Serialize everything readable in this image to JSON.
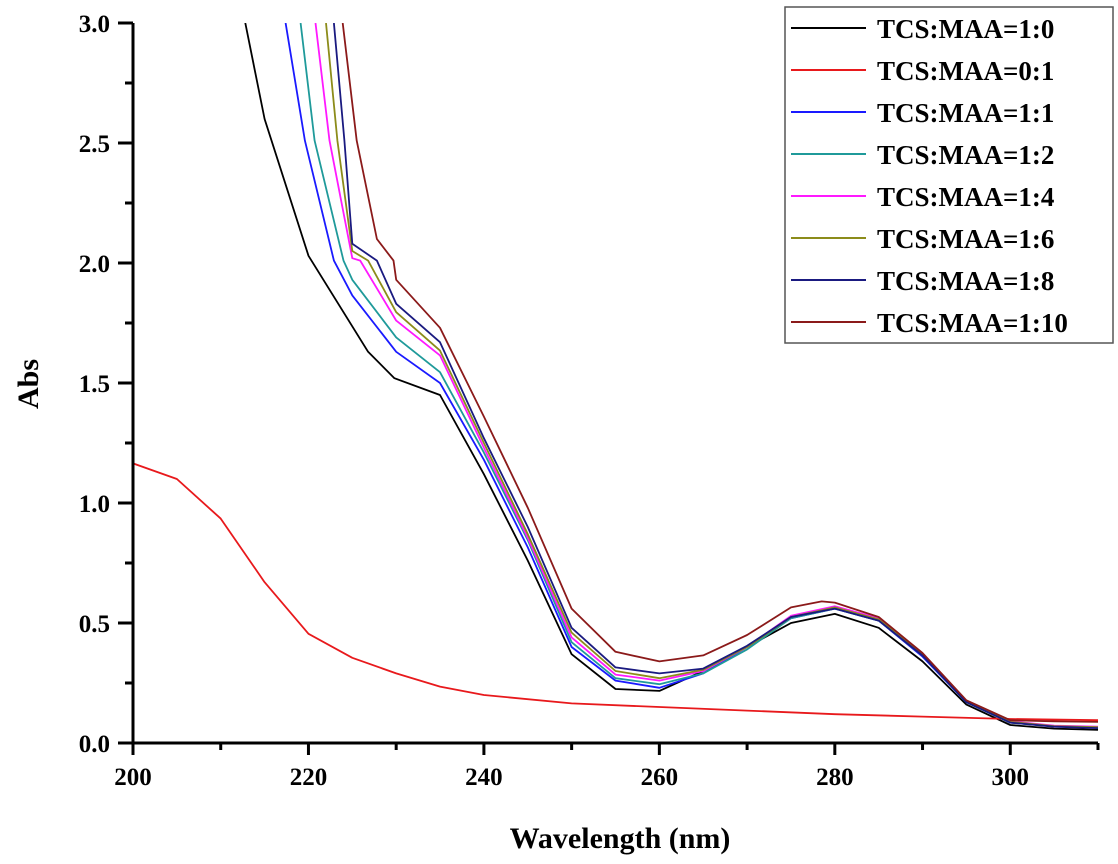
{
  "chart_data": {
    "type": "line",
    "title": "",
    "xlabel": "Wavelength (nm)",
    "ylabel": "Abs",
    "xlim": [
      200,
      310
    ],
    "ylim": [
      0.0,
      3.0
    ],
    "grid": false,
    "legend_position": "top-right",
    "x_ticks": [
      200,
      220,
      240,
      260,
      280,
      300
    ],
    "x_tick_labels": [
      "200",
      "220",
      "240",
      "260",
      "280",
      "300"
    ],
    "y_ticks": [
      0.0,
      0.5,
      1.0,
      1.5,
      2.0,
      2.5,
      3.0
    ],
    "y_tick_labels": [
      "0.0",
      "0.5",
      "1.0",
      "1.5",
      "2.0",
      "2.5",
      "3.0"
    ],
    "series": [
      {
        "name": "TCS:MAA=1:0",
        "color": "#000000",
        "x": [
          212.8,
          215,
          220,
          226.8,
          229.8,
          235,
          240,
          245,
          250,
          255,
          260,
          265,
          270,
          275,
          280,
          285,
          290,
          295,
          300,
          305,
          310
        ],
        "y": [
          3.0,
          2.6,
          2.03,
          1.63,
          1.52,
          1.45,
          1.12,
          0.76,
          0.37,
          0.225,
          0.217,
          0.3,
          0.4,
          0.5,
          0.538,
          0.48,
          0.34,
          0.16,
          0.075,
          0.06,
          0.055
        ]
      },
      {
        "name": "TCS:MAA=0:1",
        "color": "#e8191c",
        "x": [
          200,
          205,
          210,
          215,
          220,
          225,
          230,
          235,
          240,
          250,
          260,
          270,
          280,
          290,
          300,
          310
        ],
        "y": [
          1.165,
          1.1,
          0.935,
          0.67,
          0.455,
          0.355,
          0.29,
          0.235,
          0.2,
          0.165,
          0.15,
          0.135,
          0.12,
          0.11,
          0.1,
          0.095
        ]
      },
      {
        "name": "TCS:MAA=1:1",
        "color": "#1a1aff",
        "x": [
          217.4,
          219.6,
          222.9,
          225,
          230,
          235,
          240,
          245,
          250,
          255,
          260,
          265,
          270,
          275,
          280,
          285,
          290,
          295,
          300,
          305,
          310
        ],
        "y": [
          3.0,
          2.51,
          2.01,
          1.865,
          1.63,
          1.5,
          1.18,
          0.815,
          0.4,
          0.26,
          0.23,
          0.29,
          0.4,
          0.52,
          0.56,
          0.51,
          0.36,
          0.17,
          0.085,
          0.07,
          0.065
        ]
      },
      {
        "name": "TCS:MAA=1:2",
        "color": "#1f9a9a",
        "x": [
          219.1,
          220.7,
          224,
          225,
          230,
          235,
          240,
          245,
          250,
          255,
          260,
          265,
          270,
          275,
          280,
          285,
          290,
          295,
          300,
          305,
          310
        ],
        "y": [
          3.0,
          2.51,
          2.01,
          1.93,
          1.69,
          1.545,
          1.21,
          0.845,
          0.42,
          0.27,
          0.245,
          0.29,
          0.39,
          0.52,
          0.56,
          0.51,
          0.365,
          0.17,
          0.085,
          0.07,
          0.065
        ]
      },
      {
        "name": "TCS:MAA=1:4",
        "color": "#ff19ff",
        "x": [
          220.8,
          222.4,
          225,
          225.9,
          230,
          235,
          240,
          245,
          250,
          255,
          260,
          265,
          270,
          275,
          280,
          285,
          290,
          295,
          300,
          305,
          310
        ],
        "y": [
          3.0,
          2.51,
          2.02,
          2.01,
          1.76,
          1.615,
          1.23,
          0.855,
          0.44,
          0.285,
          0.26,
          0.3,
          0.4,
          0.53,
          0.57,
          0.52,
          0.37,
          0.175,
          0.09,
          0.072,
          0.068
        ]
      },
      {
        "name": "TCS:MAA=1:6",
        "color": "#8c8c1a",
        "x": [
          222,
          223.3,
          225,
          226.8,
          230,
          235,
          240,
          245,
          250,
          255,
          260,
          265,
          270,
          275,
          280,
          285,
          290,
          295,
          300,
          305,
          310
        ],
        "y": [
          3.0,
          2.51,
          2.05,
          2.01,
          1.795,
          1.635,
          1.25,
          0.87,
          0.46,
          0.3,
          0.27,
          0.305,
          0.4,
          0.525,
          0.565,
          0.515,
          0.37,
          0.172,
          0.088,
          0.07,
          0.066
        ]
      },
      {
        "name": "TCS:MAA=1:8",
        "color": "#1a1a80",
        "x": [
          222.9,
          224.1,
          225,
          227.8,
          230,
          235,
          240,
          245,
          250,
          255,
          260,
          265,
          270,
          275,
          280,
          285,
          290,
          295,
          300,
          305,
          310
        ],
        "y": [
          3.0,
          2.51,
          2.08,
          2.01,
          1.83,
          1.67,
          1.27,
          0.9,
          0.48,
          0.315,
          0.29,
          0.31,
          0.405,
          0.525,
          0.56,
          0.51,
          0.365,
          0.17,
          0.085,
          0.068,
          0.062
        ]
      },
      {
        "name": "TCS:MAA=1:10",
        "color": "#8b1a1a",
        "x": [
          223.9,
          225.5,
          227.8,
          229.7,
          230,
          235,
          240,
          245,
          250,
          255,
          260,
          265,
          270,
          275,
          278.5,
          280,
          285,
          290,
          295,
          300,
          305,
          310
        ],
        "y": [
          3.0,
          2.51,
          2.1,
          2.01,
          1.93,
          1.73,
          1.36,
          0.98,
          0.56,
          0.38,
          0.34,
          0.365,
          0.45,
          0.565,
          0.59,
          0.585,
          0.525,
          0.375,
          0.178,
          0.095,
          0.09,
          0.088
        ]
      }
    ]
  }
}
